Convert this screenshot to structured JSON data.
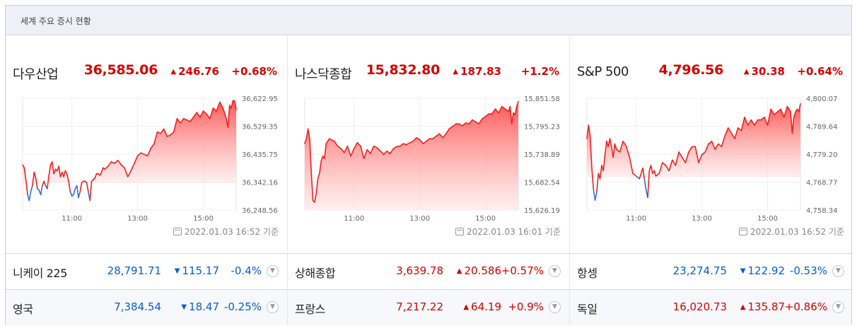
{
  "header": {
    "title": "세계 주요 증시 현황"
  },
  "colors": {
    "up": "#d60000",
    "down": "#0a5bd6",
    "area_top": "#ff4d4d",
    "area_bottom": "#ffe5e5",
    "line": "#ee2222",
    "below_line": "#2f6fe0"
  },
  "icons": {
    "up": "triangle-up-icon",
    "down": "triangle-down-icon",
    "more": "chevron-down-icon",
    "calendar": "calendar-icon"
  },
  "panels": [
    {
      "name": "다우산업",
      "value": "36,585.06",
      "change": "246.76",
      "pct": "+0.68%",
      "dir": "up",
      "stamp": "2022.01.03 16:52 기준"
    },
    {
      "name": "나스닥종합",
      "value": "15,832.80",
      "change": "187.83",
      "pct": "+1.2%",
      "dir": "up",
      "stamp": "2022.01.03 16:01 기준"
    },
    {
      "name": "S&P 500",
      "value": "4,796.56",
      "change": "30.38",
      "pct": "+0.64%",
      "dir": "up",
      "stamp": "2022.01.03 16:52 기준"
    }
  ],
  "rows": [
    [
      {
        "name": "니케이 225",
        "value": "28,791.71",
        "change": "115.17",
        "pct": "-0.4%",
        "dir": "down"
      },
      {
        "name": "상해종합",
        "value": "3,639.78",
        "change": "20.586",
        "pct": "+0.57%",
        "dir": "up"
      },
      {
        "name": "항셍",
        "value": "23,274.75",
        "change": "122.92",
        "pct": "-0.53%",
        "dir": "down"
      }
    ],
    [
      {
        "name": "영국",
        "value": "7,384.54",
        "change": "18.47",
        "pct": "-0.25%",
        "dir": "down"
      },
      {
        "name": "프랑스",
        "value": "7,217.22",
        "change": "64.19",
        "pct": "+0.9%",
        "dir": "up"
      },
      {
        "name": "독일",
        "value": "16,020.73",
        "change": "135.87",
        "pct": "+0.86%",
        "dir": "up"
      }
    ]
  ],
  "chart_data": [
    {
      "type": "area",
      "x_ticks": [
        "11:00",
        "13:00",
        "15:00"
      ],
      "x_tick_values": [
        11,
        13,
        15
      ],
      "xlim": [
        9.5,
        16.0
      ],
      "y_ticks": [
        "36,622.95",
        "36,529.35",
        "36,435.75",
        "36,342.16",
        "36,248.56"
      ],
      "ylim": [
        36248.56,
        36622.95
      ],
      "baseline": 36338.3,
      "x": [
        9.5,
        9.55,
        9.6,
        9.65,
        9.7,
        9.75,
        9.8,
        9.85,
        9.9,
        9.95,
        10.0,
        10.05,
        10.1,
        10.15,
        10.2,
        10.25,
        10.3,
        10.35,
        10.4,
        10.45,
        10.5,
        10.55,
        10.6,
        10.65,
        10.7,
        10.75,
        10.8,
        10.85,
        10.9,
        10.95,
        11.0,
        11.05,
        11.1,
        11.15,
        11.2,
        11.25,
        11.3,
        11.35,
        11.4,
        11.45,
        11.5,
        11.55,
        11.6,
        11.65,
        11.7,
        11.75,
        11.8,
        11.85,
        11.9,
        11.95,
        12.0,
        12.1,
        12.2,
        12.3,
        12.4,
        12.5,
        12.6,
        12.7,
        12.8,
        12.9,
        13.0,
        13.1,
        13.2,
        13.3,
        13.4,
        13.5,
        13.6,
        13.7,
        13.8,
        13.9,
        14.0,
        14.1,
        14.2,
        14.3,
        14.4,
        14.5,
        14.6,
        14.7,
        14.8,
        14.9,
        15.0,
        15.1,
        15.2,
        15.3,
        15.4,
        15.5,
        15.6,
        15.7,
        15.75,
        15.8,
        15.85,
        15.9,
        15.95,
        16.0
      ],
      "y": [
        36400,
        36390,
        36350,
        36300,
        36280,
        36310,
        36330,
        36375,
        36355,
        36320,
        36315,
        36300,
        36330,
        36345,
        36330,
        36320,
        36365,
        36400,
        36410,
        36370,
        36385,
        36380,
        36395,
        36360,
        36375,
        36360,
        36380,
        36370,
        36345,
        36310,
        36295,
        36300,
        36320,
        36330,
        36290,
        36310,
        36340,
        36345,
        36345,
        36340,
        36310,
        36280,
        36345,
        36350,
        36355,
        36370,
        36370,
        36365,
        36375,
        36390,
        36385,
        36395,
        36410,
        36405,
        36415,
        36400,
        36390,
        36360,
        36380,
        36405,
        36430,
        36440,
        36435,
        36430,
        36455,
        36470,
        36510,
        36505,
        36520,
        36495,
        36500,
        36510,
        36555,
        36540,
        36555,
        36550,
        36545,
        36560,
        36575,
        36560,
        36580,
        36570,
        36555,
        36590,
        36580,
        36610,
        36590,
        36555,
        36525,
        36600,
        36590,
        36615,
        36615,
        36585
      ]
    },
    {
      "type": "area",
      "x_ticks": [
        "11:00",
        "13:00",
        "15:00"
      ],
      "x_tick_values": [
        11,
        13,
        15
      ],
      "xlim": [
        9.5,
        16.0
      ],
      "y_ticks": [
        "15,851.58",
        "15,795.23",
        "15,738.89",
        "15,682.54",
        "15,626.19"
      ],
      "ylim": [
        15626.19,
        15851.58
      ],
      "baseline": 15626.19,
      "x": [
        9.5,
        9.55,
        9.6,
        9.65,
        9.7,
        9.75,
        9.8,
        9.85,
        9.9,
        9.95,
        10.0,
        10.05,
        10.1,
        10.15,
        10.2,
        10.25,
        10.3,
        10.4,
        10.5,
        10.6,
        10.7,
        10.8,
        10.9,
        11.0,
        11.1,
        11.2,
        11.3,
        11.4,
        11.5,
        11.6,
        11.7,
        11.8,
        11.9,
        12.0,
        12.1,
        12.2,
        12.3,
        12.4,
        12.5,
        12.6,
        12.7,
        12.8,
        12.9,
        13.0,
        13.1,
        13.2,
        13.3,
        13.4,
        13.5,
        13.6,
        13.7,
        13.8,
        13.9,
        14.0,
        14.1,
        14.2,
        14.3,
        14.4,
        14.5,
        14.6,
        14.7,
        14.8,
        14.9,
        15.0,
        15.1,
        15.2,
        15.3,
        15.4,
        15.5,
        15.6,
        15.7,
        15.75,
        15.8,
        15.85,
        15.9,
        15.95,
        16.0
      ],
      "y": [
        15760,
        15770,
        15790,
        15770,
        15700,
        15645,
        15642,
        15660,
        15690,
        15700,
        15725,
        15735,
        15730,
        15760,
        15765,
        15770,
        15768,
        15765,
        15755,
        15750,
        15742,
        15755,
        15735,
        15750,
        15762,
        15755,
        15730,
        15748,
        15740,
        15755,
        15752,
        15745,
        15738,
        15745,
        15740,
        15750,
        15754,
        15755,
        15760,
        15758,
        15762,
        15765,
        15772,
        15768,
        15760,
        15765,
        15770,
        15770,
        15775,
        15780,
        15772,
        15780,
        15790,
        15795,
        15800,
        15800,
        15796,
        15802,
        15800,
        15808,
        15804,
        15800,
        15810,
        15815,
        15820,
        15820,
        15830,
        15822,
        15835,
        15830,
        15825,
        15835,
        15800,
        15822,
        15818,
        15835,
        15845
      ]
    },
    {
      "type": "area",
      "x_ticks": [
        "11:00",
        "13:00",
        "15:00"
      ],
      "x_tick_values": [
        11,
        13,
        15
      ],
      "xlim": [
        9.5,
        16.0
      ],
      "y_ticks": [
        "4,800.07",
        "4,789.64",
        "4,779.20",
        "4,768.77",
        "4,758.34"
      ],
      "ylim": [
        4758.34,
        4800.07
      ],
      "baseline": 4770.5,
      "x": [
        9.5,
        9.55,
        9.6,
        9.65,
        9.7,
        9.75,
        9.8,
        9.85,
        9.9,
        9.95,
        10.0,
        10.05,
        10.1,
        10.15,
        10.2,
        10.25,
        10.3,
        10.35,
        10.4,
        10.5,
        10.6,
        10.7,
        10.8,
        10.9,
        11.0,
        11.1,
        11.2,
        11.25,
        11.3,
        11.35,
        11.4,
        11.45,
        11.5,
        11.55,
        11.6,
        11.7,
        11.8,
        11.9,
        12.0,
        12.1,
        12.2,
        12.3,
        12.4,
        12.5,
        12.6,
        12.7,
        12.8,
        12.9,
        13.0,
        13.1,
        13.2,
        13.3,
        13.4,
        13.5,
        13.6,
        13.7,
        13.8,
        13.9,
        14.0,
        14.1,
        14.2,
        14.3,
        14.4,
        14.5,
        14.6,
        14.7,
        14.8,
        14.9,
        15.0,
        15.1,
        15.2,
        15.3,
        15.4,
        15.5,
        15.6,
        15.7,
        15.75,
        15.8,
        15.85,
        15.9,
        15.95,
        16.0
      ],
      "y": [
        4785,
        4790,
        4786,
        4774,
        4766,
        4762,
        4765,
        4772,
        4770,
        4775,
        4773,
        4779,
        4784,
        4782,
        4785,
        4782,
        4778,
        4783,
        4781,
        4780,
        4784,
        4782,
        4778,
        4772,
        4771,
        4770,
        4774,
        4770,
        4766,
        4763,
        4773,
        4775,
        4772,
        4773,
        4771,
        4772,
        4776,
        4775,
        4773,
        4777,
        4775,
        4780,
        4778,
        4776,
        4780,
        4782,
        4782,
        4776,
        4779,
        4780,
        4783,
        4784,
        4781,
        4783,
        4782,
        4786,
        4789,
        4787,
        4785,
        4789,
        4788,
        4793,
        4790,
        4792,
        4790,
        4792,
        4792,
        4793,
        4790,
        4796,
        4794,
        4795,
        4796,
        4793,
        4797,
        4795,
        4787,
        4793,
        4795,
        4796,
        4795,
        4798
      ]
    }
  ]
}
